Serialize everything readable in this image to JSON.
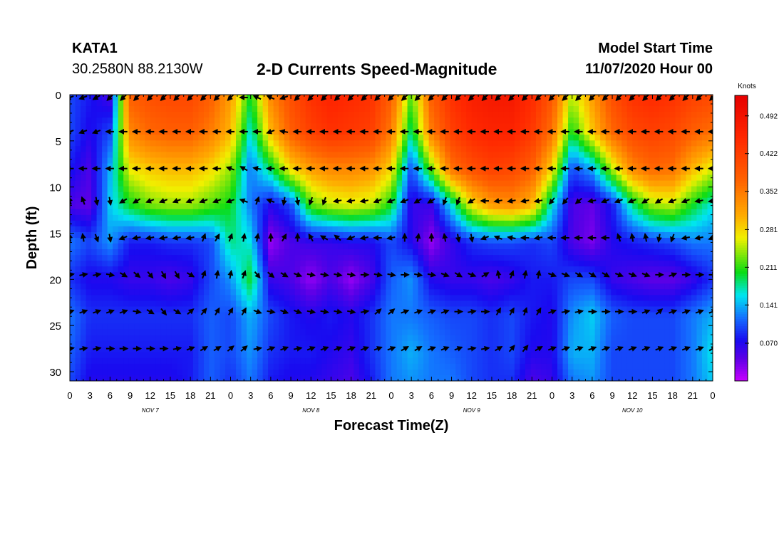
{
  "header": {
    "station": "KATA1",
    "coords": "30.2580N 88.2130W",
    "title": "2-D Currents Speed-Magnitude",
    "model_start_label": "Model Start Time",
    "model_start_value": "11/07/2020 Hour 00"
  },
  "chart_data": {
    "type": "heatmap",
    "title": "2-D Currents Speed-Magnitude",
    "xlabel": "Forecast Time(Z)",
    "ylabel": "Depth (ft)",
    "x_tick_labels": [
      "0",
      "3",
      "6",
      "9",
      "12",
      "15",
      "18",
      "21",
      "0",
      "3",
      "6",
      "9",
      "12",
      "15",
      "18",
      "21",
      "0",
      "3",
      "6",
      "9",
      "12",
      "15",
      "18",
      "21",
      "0",
      "3",
      "6",
      "9",
      "12",
      "15",
      "18",
      "21",
      "0"
    ],
    "date_labels": [
      "NOV 7",
      "NOV 8",
      "NOV 9",
      "NOV 10"
    ],
    "date_label_hours": [
      12,
      36,
      60,
      84
    ],
    "xlim": [
      0,
      96
    ],
    "ylim": [
      0,
      31
    ],
    "y_ticks": [
      0,
      5,
      10,
      15,
      20,
      25,
      30
    ],
    "y_tick_labels": [
      "0",
      "5",
      "10",
      "15",
      "20",
      "25",
      "30"
    ],
    "colorbar": {
      "unit": "Knots",
      "min": 0.0,
      "max": 0.53,
      "tick_values": [
        0.492,
        0.422,
        0.352,
        0.281,
        0.211,
        0.141,
        0.07
      ],
      "tick_labels": [
        "0.492",
        "0.422",
        "0.352",
        "0.281",
        "0.211",
        "0.141",
        "0.070"
      ]
    },
    "time_grid_hours": [
      0,
      3,
      6,
      9,
      12,
      15,
      18,
      21,
      24,
      27,
      30,
      33,
      36,
      39,
      42,
      45,
      48,
      51,
      54,
      57,
      60,
      63,
      66,
      69,
      72,
      75,
      78,
      81,
      84,
      87,
      90,
      93,
      96
    ],
    "depth_grid_ft": [
      0,
      4,
      8,
      12,
      16,
      20,
      24,
      28,
      31
    ],
    "speed_knots": [
      [
        0.1,
        0.08,
        0.05,
        0.38,
        0.4,
        0.41,
        0.41,
        0.38,
        0.32,
        0.2,
        0.34,
        0.4,
        0.44,
        0.46,
        0.45,
        0.44,
        0.38,
        0.22,
        0.38,
        0.44,
        0.47,
        0.48,
        0.48,
        0.45,
        0.39,
        0.25,
        0.32,
        0.4,
        0.44,
        0.45,
        0.44,
        0.42,
        0.41
      ],
      [
        0.1,
        0.07,
        0.1,
        0.34,
        0.37,
        0.38,
        0.38,
        0.35,
        0.3,
        0.16,
        0.3,
        0.38,
        0.42,
        0.44,
        0.43,
        0.42,
        0.35,
        0.18,
        0.35,
        0.42,
        0.45,
        0.46,
        0.46,
        0.43,
        0.36,
        0.2,
        0.29,
        0.37,
        0.41,
        0.42,
        0.41,
        0.38,
        0.36
      ],
      [
        0.08,
        0.05,
        0.14,
        0.27,
        0.29,
        0.3,
        0.3,
        0.28,
        0.24,
        0.12,
        0.19,
        0.28,
        0.32,
        0.34,
        0.34,
        0.33,
        0.28,
        0.1,
        0.23,
        0.36,
        0.4,
        0.42,
        0.41,
        0.38,
        0.28,
        0.1,
        0.14,
        0.25,
        0.34,
        0.37,
        0.36,
        0.3,
        0.26
      ],
      [
        0.05,
        0.04,
        0.15,
        0.2,
        0.23,
        0.24,
        0.24,
        0.22,
        0.2,
        0.12,
        0.07,
        0.1,
        0.22,
        0.25,
        0.26,
        0.25,
        0.2,
        0.06,
        0.06,
        0.16,
        0.27,
        0.32,
        0.33,
        0.3,
        0.16,
        0.05,
        0.04,
        0.08,
        0.18,
        0.24,
        0.25,
        0.2,
        0.16
      ],
      [
        0.12,
        0.1,
        0.13,
        0.08,
        0.08,
        0.09,
        0.09,
        0.1,
        0.18,
        0.16,
        0.02,
        0.05,
        0.06,
        0.06,
        0.07,
        0.07,
        0.1,
        0.07,
        0.02,
        0.06,
        0.09,
        0.1,
        0.1,
        0.09,
        0.1,
        0.05,
        0.03,
        0.07,
        0.08,
        0.09,
        0.1,
        0.12,
        0.12
      ],
      [
        0.09,
        0.07,
        0.07,
        0.06,
        0.06,
        0.05,
        0.06,
        0.1,
        0.13,
        0.2,
        0.06,
        0.05,
        0.02,
        0.05,
        0.02,
        0.05,
        0.11,
        0.13,
        0.07,
        0.06,
        0.06,
        0.05,
        0.06,
        0.08,
        0.08,
        0.1,
        0.1,
        0.06,
        0.05,
        0.04,
        0.04,
        0.06,
        0.09
      ],
      [
        0.12,
        0.09,
        0.09,
        0.09,
        0.09,
        0.09,
        0.09,
        0.11,
        0.1,
        0.14,
        0.1,
        0.08,
        0.07,
        0.08,
        0.07,
        0.09,
        0.12,
        0.12,
        0.11,
        0.1,
        0.1,
        0.09,
        0.1,
        0.08,
        0.07,
        0.13,
        0.15,
        0.11,
        0.1,
        0.1,
        0.1,
        0.12,
        0.14
      ],
      [
        0.11,
        0.08,
        0.08,
        0.08,
        0.08,
        0.08,
        0.08,
        0.11,
        0.1,
        0.13,
        0.09,
        0.08,
        0.08,
        0.07,
        0.06,
        0.09,
        0.12,
        0.14,
        0.12,
        0.11,
        0.1,
        0.09,
        0.1,
        0.07,
        0.07,
        0.14,
        0.14,
        0.1,
        0.1,
        0.1,
        0.1,
        0.12,
        0.16
      ],
      [
        0.1,
        0.07,
        0.07,
        0.07,
        0.07,
        0.07,
        0.08,
        0.11,
        0.09,
        0.12,
        0.08,
        0.07,
        0.07,
        0.06,
        0.05,
        0.08,
        0.12,
        0.13,
        0.12,
        0.12,
        0.1,
        0.09,
        0.09,
        0.05,
        0.06,
        0.12,
        0.13,
        0.1,
        0.1,
        0.1,
        0.1,
        0.12,
        0.15
      ]
    ],
    "arrow_depths_ft": [
      0.3,
      4,
      8,
      11.5,
      15.5,
      19.5,
      23.5,
      27.5
    ],
    "arrow_times_hours": [
      0,
      2,
      4,
      6,
      8,
      10,
      12,
      14,
      16,
      18,
      20,
      22,
      24,
      26,
      28,
      30,
      32,
      34,
      36,
      38,
      40,
      42,
      44,
      46,
      48,
      50,
      52,
      54,
      56,
      58,
      60,
      62,
      64,
      66,
      68,
      70,
      72,
      74,
      76,
      78,
      80,
      82,
      84,
      86,
      88,
      90,
      92,
      94,
      96
    ],
    "arrow_directions_deg": [
      [
        200,
        200,
        210,
        225,
        225,
        225,
        225,
        225,
        225,
        225,
        225,
        225,
        225,
        180,
        155,
        155,
        200,
        225,
        225,
        225,
        225,
        225,
        225,
        225,
        225,
        225,
        225,
        225,
        225,
        225,
        225,
        225,
        225,
        225,
        225,
        225,
        225,
        225,
        225,
        225,
        225,
        225,
        225,
        225,
        225,
        225,
        225,
        225,
        225
      ],
      [
        200,
        200,
        200,
        180,
        180,
        180,
        180,
        180,
        180,
        180,
        180,
        180,
        180,
        180,
        180,
        200,
        170,
        180,
        180,
        180,
        180,
        180,
        180,
        180,
        180,
        180,
        180,
        180,
        180,
        180,
        180,
        180,
        180,
        180,
        180,
        180,
        180,
        180,
        180,
        180,
        180,
        180,
        180,
        180,
        180,
        180,
        180,
        180,
        180
      ],
      [
        180,
        180,
        180,
        180,
        180,
        180,
        180,
        180,
        180,
        180,
        180,
        180,
        160,
        150,
        170,
        180,
        180,
        180,
        180,
        180,
        180,
        180,
        180,
        180,
        180,
        180,
        180,
        180,
        180,
        180,
        180,
        180,
        180,
        180,
        180,
        180,
        180,
        180,
        180,
        180,
        180,
        180,
        180,
        180,
        180,
        180,
        180,
        180,
        180
      ],
      [
        110,
        110,
        280,
        280,
        210,
        210,
        200,
        200,
        200,
        200,
        200,
        200,
        200,
        160,
        70,
        160,
        260,
        280,
        250,
        250,
        190,
        190,
        190,
        200,
        200,
        200,
        210,
        210,
        250,
        250,
        210,
        180,
        190,
        190,
        190,
        190,
        230,
        230,
        220,
        190,
        200,
        200,
        200,
        210,
        210,
        200,
        200,
        190,
        190
      ],
      [
        100,
        100,
        290,
        280,
        200,
        190,
        190,
        190,
        190,
        190,
        70,
        60,
        70,
        80,
        80,
        90,
        60,
        90,
        120,
        150,
        140,
        200,
        190,
        180,
        190,
        90,
        80,
        90,
        100,
        280,
        280,
        200,
        160,
        170,
        180,
        190,
        180,
        180,
        180,
        180,
        180,
        110,
        100,
        100,
        260,
        250,
        190,
        190,
        200
      ],
      [
        10,
        10,
        10,
        -10,
        -30,
        -40,
        -50,
        -60,
        -60,
        -30,
        70,
        80,
        80,
        70,
        -50,
        -40,
        -30,
        -20,
        -10,
        -10,
        -10,
        -10,
        0,
        -10,
        -10,
        0,
        -10,
        -10,
        -20,
        -30,
        -20,
        30,
        100,
        70,
        80,
        80,
        -20,
        -20,
        -30,
        -30,
        -30,
        -20,
        -20,
        -20,
        0,
        20,
        0,
        0,
        0
      ],
      [
        20,
        20,
        20,
        20,
        20,
        -10,
        -30,
        -50,
        -30,
        40,
        50,
        60,
        60,
        60,
        -20,
        -10,
        -20,
        -20,
        -10,
        -10,
        -10,
        -10,
        10,
        40,
        40,
        20,
        20,
        20,
        20,
        0,
        10,
        0,
        60,
        60,
        70,
        60,
        20,
        10,
        10,
        0,
        0,
        0,
        0,
        20,
        40,
        20,
        20,
        20,
        20
      ],
      [
        10,
        10,
        10,
        0,
        0,
        0,
        0,
        0,
        10,
        20,
        30,
        30,
        40,
        40,
        10,
        20,
        20,
        10,
        20,
        20,
        20,
        20,
        20,
        20,
        20,
        30,
        30,
        20,
        20,
        20,
        10,
        10,
        30,
        50,
        50,
        30,
        20,
        20,
        20,
        20,
        20,
        20,
        20,
        20,
        20,
        20,
        20,
        20,
        30
      ]
    ]
  }
}
